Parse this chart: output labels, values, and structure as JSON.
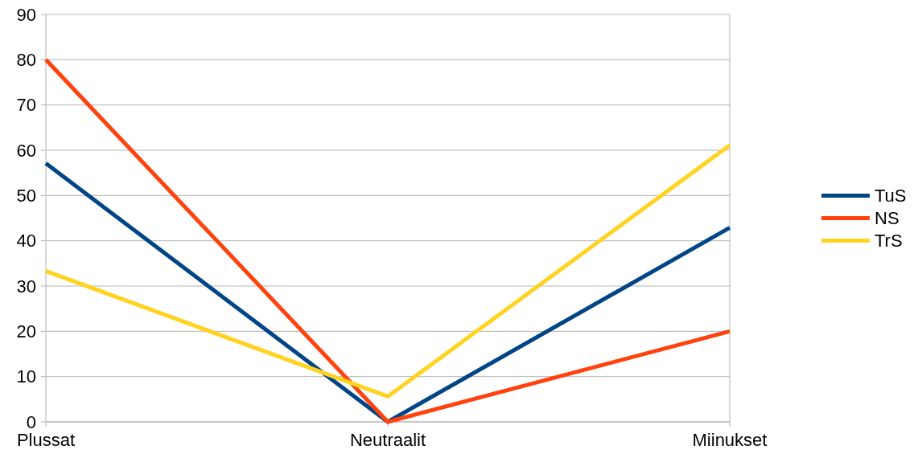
{
  "chart_data": {
    "type": "line",
    "categories": [
      "Plussat",
      "Neutraalit",
      "Miinukset"
    ],
    "series": [
      {
        "name": "TuS",
        "color": "#004586",
        "values": [
          57.1,
          0,
          42.9
        ]
      },
      {
        "name": "NS",
        "color": "#ff420e",
        "values": [
          80,
          0,
          20
        ]
      },
      {
        "name": "TrS",
        "color": "#ffd320",
        "values": [
          33.3,
          5.6,
          61.1
        ]
      }
    ],
    "ylim": [
      0,
      90
    ],
    "yticks": [
      0,
      10,
      20,
      30,
      40,
      50,
      60,
      70,
      80,
      90
    ],
    "grid": "y",
    "legend": "right",
    "marker": "none",
    "line_style": "solid"
  }
}
